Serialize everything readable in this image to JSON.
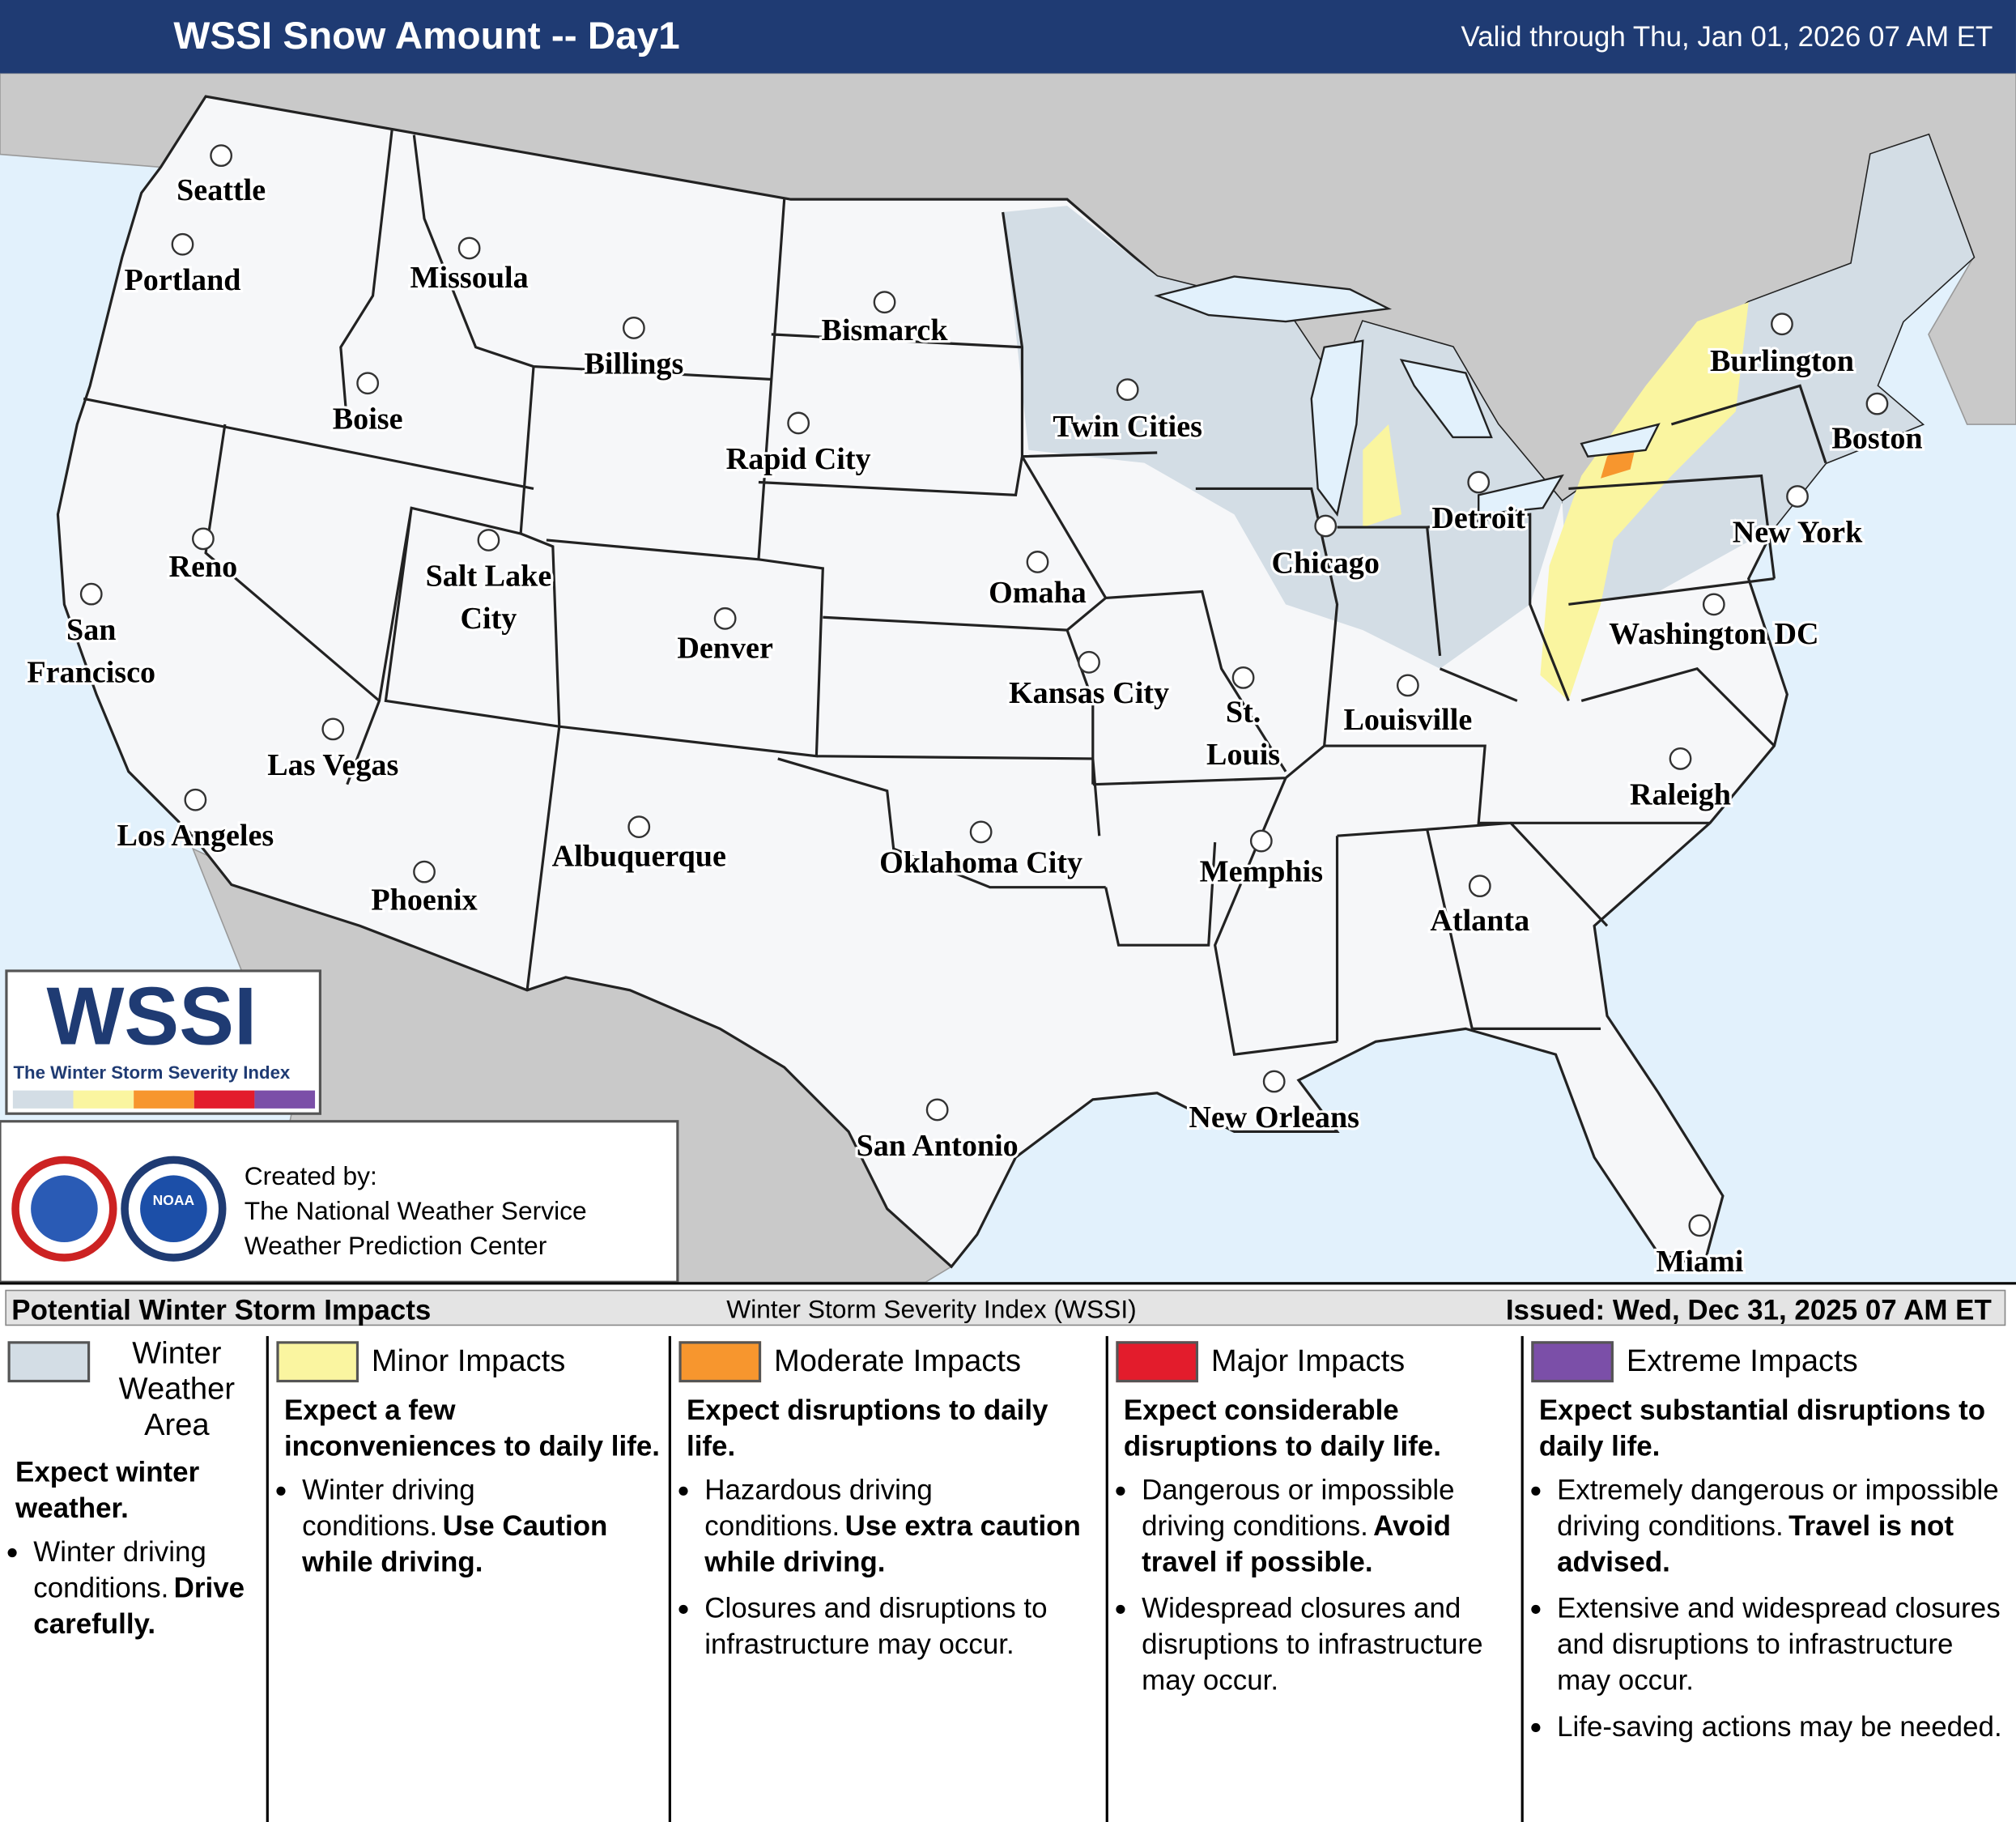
{
  "header": {
    "title": "WSSI Snow Amount -- Day1",
    "valid": "Valid through Thu, Jan 01, 2026 07 AM ET"
  },
  "cities": [
    {
      "label": [
        "Seattle"
      ]
    },
    {
      "label": [
        "Portland"
      ]
    },
    {
      "label": [
        "Missoula"
      ]
    },
    {
      "label": [
        "Billings"
      ]
    },
    {
      "label": [
        "Bismarck"
      ]
    },
    {
      "label": [
        "Boise"
      ]
    },
    {
      "label": [
        "Rapid City"
      ]
    },
    {
      "label": [
        "Twin Cities"
      ]
    },
    {
      "label": [
        "Reno"
      ]
    },
    {
      "label": [
        "Salt Lake",
        "City"
      ]
    },
    {
      "label": [
        "Denver"
      ]
    },
    {
      "label": [
        "Omaha"
      ]
    },
    {
      "label": [
        "Chicago"
      ]
    },
    {
      "label": [
        "Detroit"
      ]
    },
    {
      "label": [
        "Burlington"
      ]
    },
    {
      "label": [
        "Boston"
      ]
    },
    {
      "label": [
        "New York"
      ]
    },
    {
      "label": [
        "Washington DC"
      ]
    },
    {
      "label": [
        "San",
        "Francisco"
      ]
    },
    {
      "label": [
        "Kansas City"
      ]
    },
    {
      "label": [
        "St.",
        "Louis"
      ]
    },
    {
      "label": [
        "Louisville"
      ]
    },
    {
      "label": [
        "Las Vegas"
      ]
    },
    {
      "label": [
        "Los Angeles"
      ]
    },
    {
      "label": [
        "Albuquerque"
      ]
    },
    {
      "label": [
        "Oklahoma City"
      ]
    },
    {
      "label": [
        "Memphis"
      ]
    },
    {
      "label": [
        "Raleigh"
      ]
    },
    {
      "label": [
        "Phoenix"
      ]
    },
    {
      "label": [
        "Atlanta"
      ]
    },
    {
      "label": [
        "New Orleans"
      ]
    },
    {
      "label": [
        "San Antonio"
      ]
    },
    {
      "label": [
        "Miami"
      ]
    }
  ],
  "logo": {
    "text": "WSSI",
    "subtitle": "The Winter Storm Severity Index"
  },
  "credits": {
    "noaa": "NOAA",
    "lines": [
      "Created by:",
      "The National Weather Service",
      "Weather Prediction Center"
    ]
  },
  "legend": {
    "title": "Potential Winter Storm Impacts",
    "index_name": "Winter Storm Severity Index (WSSI)",
    "issued": "Issued: Wed, Dec 31, 2025 07 AM ET",
    "categories": [
      {
        "name": "Winter Weather Area",
        "color": "#d3dde5",
        "summary": "Expect winter weather.",
        "bullets": [
          {
            "text": "Winter driving conditions.",
            "emphasis": "Drive carefully."
          }
        ]
      },
      {
        "name": "Minor Impacts",
        "color": "#faf5a0",
        "summary": "Expect a few inconveniences to daily life.",
        "bullets": [
          {
            "text": "Winter driving conditions.",
            "emphasis": "Use Caution while driving."
          }
        ]
      },
      {
        "name": "Moderate Impacts",
        "color": "#f7962e",
        "summary": "Expect disruptions to daily life.",
        "bullets": [
          {
            "text": "Hazardous driving conditions.",
            "emphasis": "Use extra caution while driving."
          },
          {
            "text": "Closures and disruptions to infrastructure may occur."
          }
        ]
      },
      {
        "name": "Major Impacts",
        "color": "#e31c2c",
        "summary": "Expect considerable disruptions to daily life.",
        "bullets": [
          {
            "text": "Dangerous or impossible driving conditions.",
            "emphasis": "Avoid travel if possible."
          },
          {
            "text": "Widespread closures and disruptions to infrastructure may occur."
          }
        ]
      },
      {
        "name": "Extreme Impacts",
        "color": "#7b4fa8",
        "summary": "Expect substantial disruptions to daily life.",
        "bullets": [
          {
            "text": "Extremely dangerous or impossible driving conditions.",
            "emphasis": "Travel is not advised."
          },
          {
            "text": "Extensive and widespread closures and disruptions to infrastructure may occur."
          },
          {
            "text": "Life-saving actions may be needed."
          }
        ]
      }
    ]
  }
}
